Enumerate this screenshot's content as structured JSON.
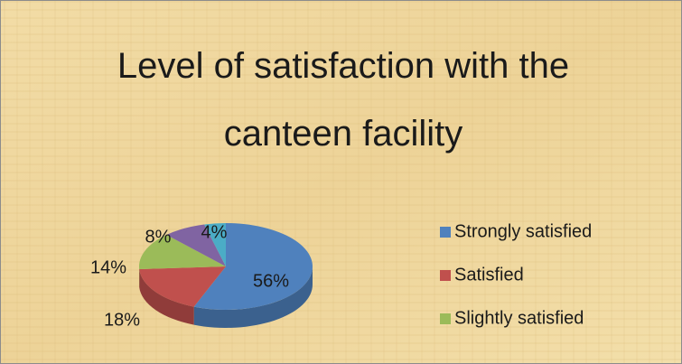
{
  "chart_data": {
    "type": "pie",
    "title": "Level of satisfaction with the canteen facility",
    "categories": [
      "Strongly satisfied",
      "Satisfied",
      "Slightly satisfied",
      null,
      null
    ],
    "values": [
      56,
      18,
      14,
      8,
      4
    ],
    "value_labels": [
      "56%",
      "18%",
      "14%",
      "8%",
      "4%"
    ],
    "colors": [
      "#4f81bd",
      "#c0504d",
      "#9bbb59",
      "#8064a2",
      "#4bacc6"
    ],
    "legend": "right"
  }
}
